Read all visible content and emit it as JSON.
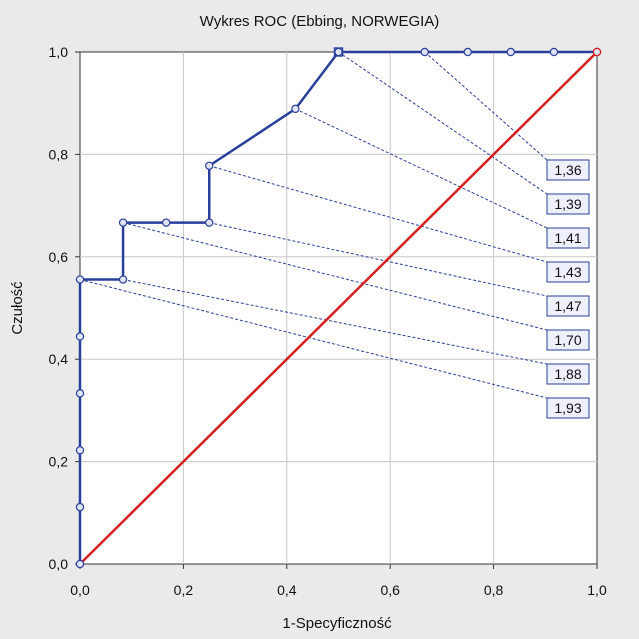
{
  "chart_data": {
    "type": "line",
    "title": "Wykres ROC (Ebbing, NORWEGIA)",
    "xlabel": "1-Specyficzność",
    "ylabel": "Czułość",
    "xlim": [
      0,
      1
    ],
    "ylim": [
      0,
      1
    ],
    "x_ticks": [
      "0,0",
      "0,2",
      "0,4",
      "0,6",
      "0,8",
      "1,0"
    ],
    "y_ticks": [
      "0,0",
      "0,2",
      "0,4",
      "0,6",
      "0,8",
      "1,0"
    ],
    "grid": true,
    "colors": {
      "roc": "#2a3f9a",
      "diagonal": "#d42020",
      "cutoff_box": "#eef0fb",
      "background": "#eaeaea"
    },
    "series": [
      {
        "x": [
          0,
          0,
          0,
          0,
          0,
          0,
          0.0833,
          0.0833,
          0.1667,
          0.25,
          0.25,
          0.4167,
          0.5,
          0.6667,
          0.75,
          0.8333,
          0.9167,
          1.0
        ],
        "y": [
          0,
          0.1111,
          0.2222,
          0.3333,
          0.4444,
          0.5556,
          0.5556,
          0.6667,
          0.6667,
          0.6667,
          0.7778,
          0.8889,
          1.0,
          1.0,
          1.0,
          1.0,
          1.0,
          1.0
        ]
      },
      {
        "x": [
          0,
          1
        ],
        "y": [
          0,
          1
        ]
      }
    ],
    "cutoffs": [
      {
        "label": "1,36",
        "x": 0.6667,
        "y": 1.0
      },
      {
        "label": "1,39",
        "x": 0.5,
        "y": 1.0
      },
      {
        "label": "1,41",
        "x": 0.4167,
        "y": 0.8889
      },
      {
        "label": "1,43",
        "x": 0.25,
        "y": 0.7778
      },
      {
        "label": "1,47",
        "x": 0.25,
        "y": 0.6667
      },
      {
        "label": "1,70",
        "x": 0.0833,
        "y": 0.6667
      },
      {
        "label": "1,88",
        "x": 0.0833,
        "y": 0.5556
      },
      {
        "label": "1,93",
        "x": 0.0,
        "y": 0.5556
      }
    ]
  }
}
